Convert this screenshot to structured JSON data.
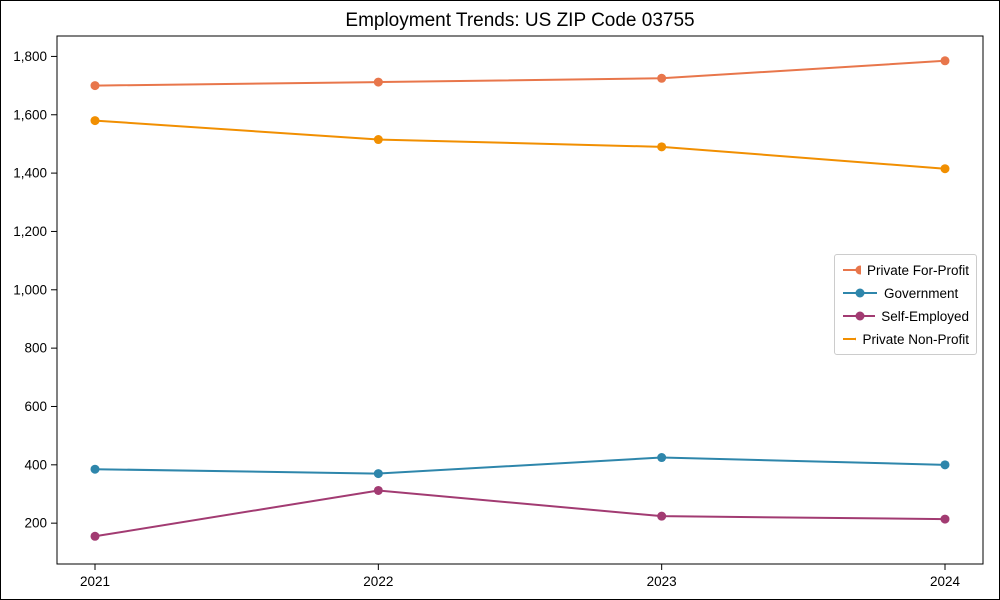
{
  "page": {
    "background_color": "#ffffff",
    "frame_border_color": "#000000"
  },
  "chart_data": {
    "type": "line",
    "title": "Employment Trends: US ZIP Code 03755",
    "xlabel": "",
    "ylabel": "",
    "x_tick_labels": [
      "2021",
      "2022",
      "2023",
      "2024"
    ],
    "x": [
      2021,
      2022,
      2023,
      2024
    ],
    "series": [
      {
        "name": "Private For-Profit",
        "color": "#E8764B",
        "values": [
          1700,
          1712,
          1725,
          1785
        ]
      },
      {
        "name": "Government",
        "color": "#2E86AB",
        "values": [
          385,
          370,
          425,
          400
        ]
      },
      {
        "name": "Self-Employed",
        "color": "#A23B72",
        "values": [
          155,
          312,
          224,
          214
        ]
      },
      {
        "name": "Private Non-Profit",
        "color": "#F18F01",
        "values": [
          1580,
          1515,
          1490,
          1415
        ]
      }
    ],
    "y_ticks": [
      200,
      400,
      600,
      800,
      1000,
      1200,
      1400,
      1600,
      1800
    ],
    "y_tick_labels": [
      "200",
      "400",
      "600",
      "800",
      "1,000",
      "1,200",
      "1,400",
      "1,600",
      "1,800"
    ],
    "ylim": [
      60,
      1870
    ],
    "grid": false,
    "legend_position": "center right",
    "axis_color": "#000000",
    "legend_border_color": "#cccccc",
    "marker": "circle",
    "marker_radius": 4.5,
    "line_width": 2
  }
}
